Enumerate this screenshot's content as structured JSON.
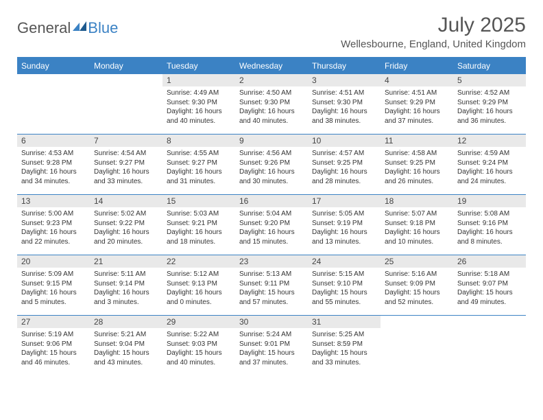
{
  "brand": {
    "part1": "General",
    "part2": "Blue"
  },
  "title": "July 2025",
  "location": "Wellesbourne, England, United Kingdom",
  "colors": {
    "accent": "#3b82c4",
    "dayBg": "#e9e9e9",
    "text": "#333333",
    "titleText": "#555555",
    "white": "#ffffff"
  },
  "typography": {
    "title_fontsize": 30,
    "location_fontsize": 15,
    "header_fontsize": 12,
    "daynum_fontsize": 12,
    "body_fontsize": 10
  },
  "columns": [
    "Sunday",
    "Monday",
    "Tuesday",
    "Wednesday",
    "Thursday",
    "Friday",
    "Saturday"
  ],
  "weeks": [
    [
      {
        "n": "",
        "sr": "",
        "ss": "",
        "dl": ""
      },
      {
        "n": "",
        "sr": "",
        "ss": "",
        "dl": ""
      },
      {
        "n": "1",
        "sr": "4:49 AM",
        "ss": "9:30 PM",
        "dl": "16 hours and 40 minutes."
      },
      {
        "n": "2",
        "sr": "4:50 AM",
        "ss": "9:30 PM",
        "dl": "16 hours and 40 minutes."
      },
      {
        "n": "3",
        "sr": "4:51 AM",
        "ss": "9:30 PM",
        "dl": "16 hours and 38 minutes."
      },
      {
        "n": "4",
        "sr": "4:51 AM",
        "ss": "9:29 PM",
        "dl": "16 hours and 37 minutes."
      },
      {
        "n": "5",
        "sr": "4:52 AM",
        "ss": "9:29 PM",
        "dl": "16 hours and 36 minutes."
      }
    ],
    [
      {
        "n": "6",
        "sr": "4:53 AM",
        "ss": "9:28 PM",
        "dl": "16 hours and 34 minutes."
      },
      {
        "n": "7",
        "sr": "4:54 AM",
        "ss": "9:27 PM",
        "dl": "16 hours and 33 minutes."
      },
      {
        "n": "8",
        "sr": "4:55 AM",
        "ss": "9:27 PM",
        "dl": "16 hours and 31 minutes."
      },
      {
        "n": "9",
        "sr": "4:56 AM",
        "ss": "9:26 PM",
        "dl": "16 hours and 30 minutes."
      },
      {
        "n": "10",
        "sr": "4:57 AM",
        "ss": "9:25 PM",
        "dl": "16 hours and 28 minutes."
      },
      {
        "n": "11",
        "sr": "4:58 AM",
        "ss": "9:25 PM",
        "dl": "16 hours and 26 minutes."
      },
      {
        "n": "12",
        "sr": "4:59 AM",
        "ss": "9:24 PM",
        "dl": "16 hours and 24 minutes."
      }
    ],
    [
      {
        "n": "13",
        "sr": "5:00 AM",
        "ss": "9:23 PM",
        "dl": "16 hours and 22 minutes."
      },
      {
        "n": "14",
        "sr": "5:02 AM",
        "ss": "9:22 PM",
        "dl": "16 hours and 20 minutes."
      },
      {
        "n": "15",
        "sr": "5:03 AM",
        "ss": "9:21 PM",
        "dl": "16 hours and 18 minutes."
      },
      {
        "n": "16",
        "sr": "5:04 AM",
        "ss": "9:20 PM",
        "dl": "16 hours and 15 minutes."
      },
      {
        "n": "17",
        "sr": "5:05 AM",
        "ss": "9:19 PM",
        "dl": "16 hours and 13 minutes."
      },
      {
        "n": "18",
        "sr": "5:07 AM",
        "ss": "9:18 PM",
        "dl": "16 hours and 10 minutes."
      },
      {
        "n": "19",
        "sr": "5:08 AM",
        "ss": "9:16 PM",
        "dl": "16 hours and 8 minutes."
      }
    ],
    [
      {
        "n": "20",
        "sr": "5:09 AM",
        "ss": "9:15 PM",
        "dl": "16 hours and 5 minutes."
      },
      {
        "n": "21",
        "sr": "5:11 AM",
        "ss": "9:14 PM",
        "dl": "16 hours and 3 minutes."
      },
      {
        "n": "22",
        "sr": "5:12 AM",
        "ss": "9:13 PM",
        "dl": "16 hours and 0 minutes."
      },
      {
        "n": "23",
        "sr": "5:13 AM",
        "ss": "9:11 PM",
        "dl": "15 hours and 57 minutes."
      },
      {
        "n": "24",
        "sr": "5:15 AM",
        "ss": "9:10 PM",
        "dl": "15 hours and 55 minutes."
      },
      {
        "n": "25",
        "sr": "5:16 AM",
        "ss": "9:09 PM",
        "dl": "15 hours and 52 minutes."
      },
      {
        "n": "26",
        "sr": "5:18 AM",
        "ss": "9:07 PM",
        "dl": "15 hours and 49 minutes."
      }
    ],
    [
      {
        "n": "27",
        "sr": "5:19 AM",
        "ss": "9:06 PM",
        "dl": "15 hours and 46 minutes."
      },
      {
        "n": "28",
        "sr": "5:21 AM",
        "ss": "9:04 PM",
        "dl": "15 hours and 43 minutes."
      },
      {
        "n": "29",
        "sr": "5:22 AM",
        "ss": "9:03 PM",
        "dl": "15 hours and 40 minutes."
      },
      {
        "n": "30",
        "sr": "5:24 AM",
        "ss": "9:01 PM",
        "dl": "15 hours and 37 minutes."
      },
      {
        "n": "31",
        "sr": "5:25 AM",
        "ss": "8:59 PM",
        "dl": "15 hours and 33 minutes."
      },
      {
        "n": "",
        "sr": "",
        "ss": "",
        "dl": ""
      },
      {
        "n": "",
        "sr": "",
        "ss": "",
        "dl": ""
      }
    ]
  ],
  "labels": {
    "sunrise": "Sunrise:",
    "sunset": "Sunset:",
    "daylight": "Daylight:"
  }
}
